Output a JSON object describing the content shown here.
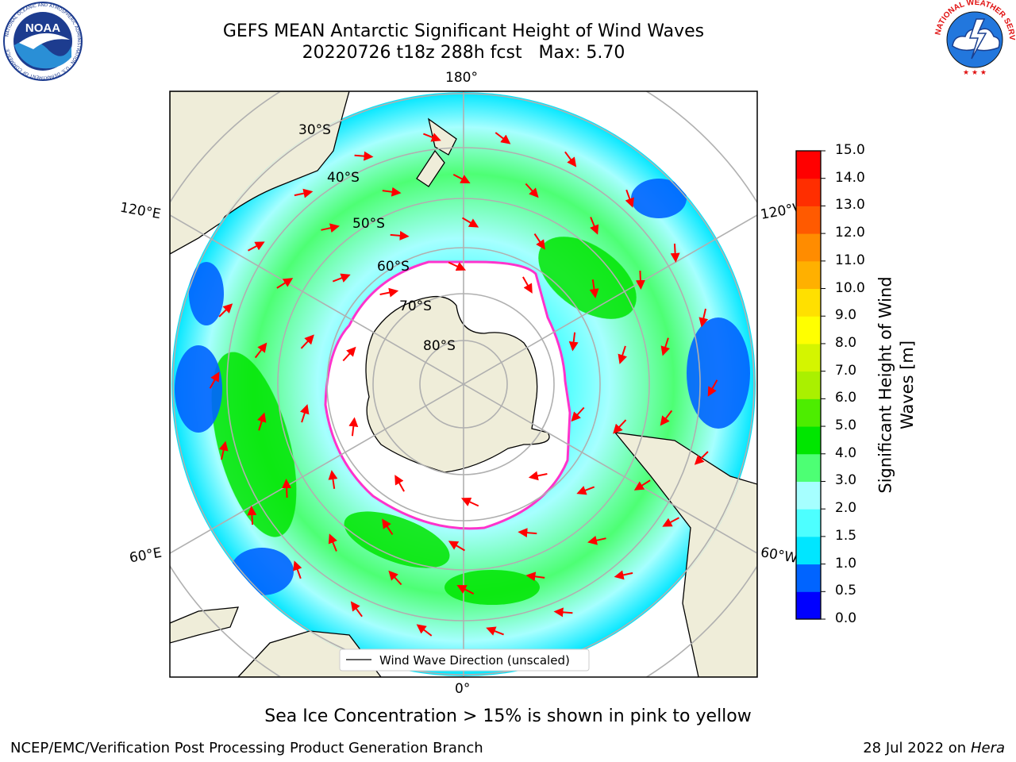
{
  "title": {
    "line1": "GEFS MEAN Antarctic Significant Height of Wind Waves",
    "line2": "20220726 t18z 288h fcst   Max: 5.70"
  },
  "map": {
    "projection": "south-polar-stereographic",
    "lon_labels": [
      "180°",
      "120°E",
      "120°W",
      "60°E",
      "60°W",
      "0°"
    ],
    "lat_labels": [
      "30°S",
      "40°S",
      "50°S",
      "60°S",
      "70°S",
      "80°S"
    ],
    "legend_label": "Wind Wave Direction (unscaled)",
    "colors": {
      "land": "#efedd9",
      "ice_free_white": "#ffffff",
      "sea_ice_edge": "#ff33cc",
      "arrow": "#ff0000",
      "grid": "#b0b0b0"
    }
  },
  "colorbar": {
    "label": "Significant Height of Wind Waves [m]",
    "ticks": [
      "0.0",
      "0.5",
      "1.0",
      "1.5",
      "2.0",
      "3.0",
      "4.0",
      "5.0",
      "6.0",
      "7.0",
      "8.0",
      "9.0",
      "10.0",
      "11.0",
      "12.0",
      "13.0",
      "14.0",
      "15.0"
    ],
    "colors": [
      "#0000ff",
      "#0064ff",
      "#00e6ff",
      "#4dffff",
      "#a6ffff",
      "#4dff74",
      "#00e600",
      "#4ded00",
      "#aaf000",
      "#d4f500",
      "#ffff00",
      "#ffe000",
      "#ffb000",
      "#ff8c00",
      "#ff5a00",
      "#ff2e00",
      "#ff0000"
    ]
  },
  "caption": "Sea Ice Concentration > 15% is shown in pink to yellow",
  "footer": {
    "left": "NCEP/EMC/Verification Post Processing Product Generation Branch",
    "right_date": "28 Jul 2022 on",
    "right_host": "Hera"
  },
  "logos": {
    "left": "NOAA",
    "left_ring": "NATIONAL OCEANIC AND ATMOSPHERIC ADMINISTRATION · U.S. DEPARTMENT OF COMMERCE",
    "right_ring": "NATIONAL WEATHER SERVICE"
  }
}
